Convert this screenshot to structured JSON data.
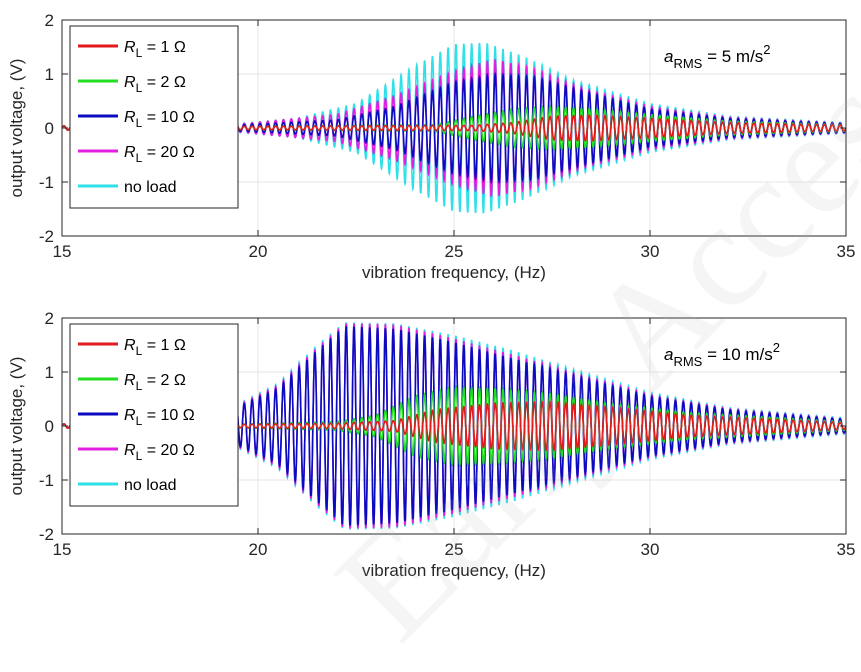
{
  "watermark": "Early Access",
  "colors": {
    "RL1": "#e31a1c",
    "RL2": "#22dd22",
    "RL10": "#0a0ac0",
    "RL20": "#e020e0",
    "noload": "#30e0e8",
    "grid": "#e6e6e6",
    "axis": "#262626"
  },
  "chart_data": [
    {
      "type": "line",
      "xlabel": "vibration frequency, (Hz)",
      "ylabel": "output voltage, (V)",
      "xlim": [
        15,
        35
      ],
      "ylim": [
        -2,
        2
      ],
      "xticks": [
        15,
        20,
        25,
        30,
        35
      ],
      "yticks": [
        -2,
        -1,
        0,
        1,
        2
      ],
      "grid": true,
      "legend_position": "top-left",
      "annotation": {
        "prefix": "a",
        "sub": "RMS",
        "text": " = 5 m/s",
        "sup": "2"
      },
      "series": [
        {
          "name": "R",
          "sub": "L",
          "value": " = 1 Ω",
          "color_key": "RL1",
          "envelope": {
            "x": [
              19.3,
              25.5,
              26.5,
              27.5,
              28.5,
              30,
              32,
              35
            ],
            "amp": [
              0.03,
              0.05,
              0.1,
              0.22,
              0.24,
              0.18,
              0.1,
              0.05
            ]
          }
        },
        {
          "name": "R",
          "sub": "L",
          "value": " = 2 Ω",
          "color_key": "RL2",
          "envelope": {
            "x": [
              19.3,
              24.5,
              25.5,
              26.5,
              27.5,
              28.5,
              30,
              32,
              35
            ],
            "amp": [
              0.03,
              0.06,
              0.22,
              0.35,
              0.4,
              0.36,
              0.25,
              0.13,
              0.06
            ]
          }
        },
        {
          "name": "R",
          "sub": "L",
          "value": " = 10 Ω",
          "color_key": "RL10",
          "envelope": {
            "x": [
              19.3,
              22,
              23.5,
              25,
              26,
              27,
              28.5,
              30,
              32,
              35
            ],
            "amp": [
              0.05,
              0.15,
              0.4,
              0.85,
              1.0,
              0.95,
              0.65,
              0.35,
              0.18,
              0.08
            ]
          }
        },
        {
          "name": "R",
          "sub": "L",
          "value": " = 20 Ω",
          "color_key": "RL20",
          "envelope": {
            "x": [
              19.3,
              22,
              23.5,
              25,
              26,
              27,
              28.5,
              30,
              32,
              35
            ],
            "amp": [
              0.06,
              0.25,
              0.6,
              1.05,
              1.28,
              1.1,
              0.7,
              0.4,
              0.2,
              0.09
            ]
          }
        },
        {
          "name": "no load",
          "sub": "",
          "value": "",
          "color_key": "noload",
          "envelope": {
            "x": [
              19.3,
              21,
              22.5,
              24,
              25,
              25.8,
              26.8,
              28,
              30,
              32,
              35
            ],
            "amp": [
              0.07,
              0.18,
              0.45,
              1.15,
              1.55,
              1.58,
              1.32,
              0.9,
              0.45,
              0.22,
              0.1
            ]
          }
        }
      ]
    },
    {
      "type": "line",
      "xlabel": "vibration frequency, (Hz)",
      "ylabel": "output voltage, (V)",
      "xlim": [
        15,
        35
      ],
      "ylim": [
        -2,
        2
      ],
      "xticks": [
        15,
        20,
        25,
        30,
        35
      ],
      "yticks": [
        -2,
        -1,
        0,
        1,
        2
      ],
      "grid": true,
      "legend_position": "top-left",
      "annotation": {
        "prefix": "a",
        "sub": "RMS",
        "text": " = 10 m/s",
        "sup": "2"
      },
      "series": [
        {
          "name": "R",
          "sub": "L",
          "value": " = 1 Ω",
          "color_key": "RL1",
          "envelope": {
            "x": [
              19.3,
              22,
              23.5,
              24.5,
              26,
              27.5,
              29,
              31,
              35
            ],
            "amp": [
              0.03,
              0.05,
              0.1,
              0.3,
              0.42,
              0.45,
              0.35,
              0.2,
              0.06
            ]
          }
        },
        {
          "name": "R",
          "sub": "L",
          "value": " = 2 Ω",
          "color_key": "RL2",
          "envelope": {
            "x": [
              19.3,
              22,
              23,
              24,
              25,
              26,
              27.5,
              29,
              31,
              35
            ],
            "amp": [
              0.03,
              0.08,
              0.2,
              0.55,
              0.72,
              0.7,
              0.6,
              0.42,
              0.25,
              0.08
            ]
          }
        },
        {
          "name": "R",
          "sub": "L",
          "value": " = 10 Ω",
          "color_key": "RL10",
          "envelope": {
            "x": [
              19.3,
              20.5,
              21.5,
              22.2,
              23.5,
              25,
              26.5,
              28,
              30,
              32,
              35
            ],
            "amp": [
              0.3,
              0.7,
              1.4,
              1.85,
              1.8,
              1.55,
              1.25,
              0.95,
              0.55,
              0.3,
              0.12
            ]
          }
        },
        {
          "name": "R",
          "sub": "L",
          "value": " = 20 Ω",
          "color_key": "RL20",
          "envelope": {
            "x": [
              19.3,
              20.5,
              21.5,
              22.2,
              23.5,
              25,
              26.5,
              28,
              30,
              32,
              35
            ],
            "amp": [
              0.32,
              0.75,
              1.45,
              1.9,
              1.88,
              1.62,
              1.32,
              1.0,
              0.58,
              0.32,
              0.13
            ]
          }
        },
        {
          "name": "no load",
          "sub": "",
          "value": "",
          "color_key": "noload",
          "envelope": {
            "x": [
              19.3,
              20.5,
              21.5,
              22.2,
              23.5,
              25,
              26.5,
              28,
              30,
              32,
              35
            ],
            "amp": [
              0.34,
              0.78,
              1.5,
              1.92,
              1.9,
              1.68,
              1.4,
              1.06,
              0.62,
              0.34,
              0.15
            ]
          }
        }
      ]
    }
  ]
}
